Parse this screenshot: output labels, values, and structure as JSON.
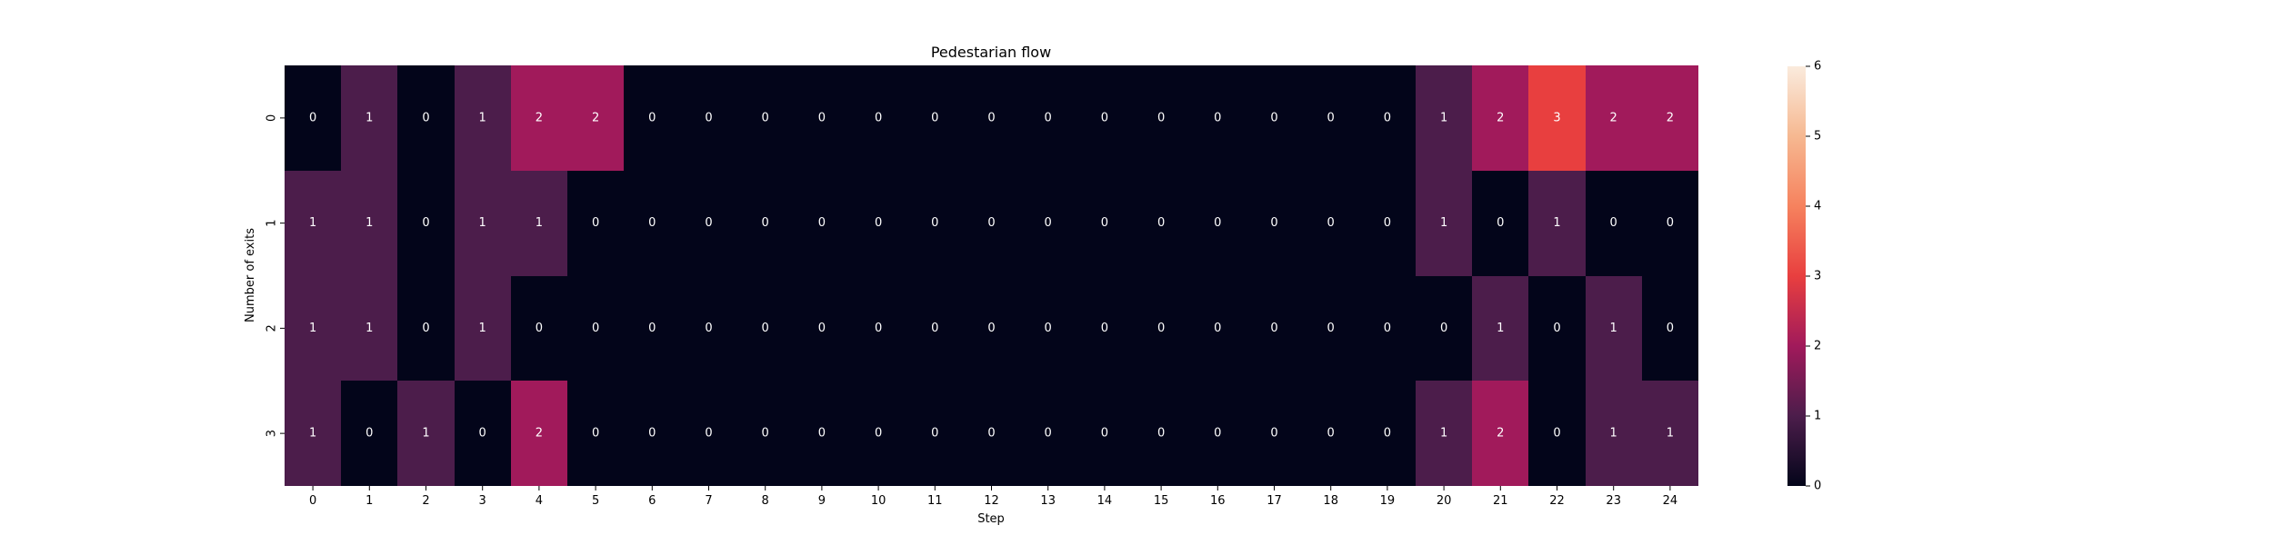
{
  "chart_data": {
    "type": "heatmap",
    "title": "Pedestarian flow",
    "xlabel": "Step",
    "ylabel": "Number of exits",
    "x_ticks": [
      "0",
      "1",
      "2",
      "3",
      "4",
      "5",
      "6",
      "7",
      "8",
      "9",
      "10",
      "11",
      "12",
      "13",
      "14",
      "15",
      "16",
      "17",
      "18",
      "19",
      "20",
      "21",
      "22",
      "23",
      "24"
    ],
    "y_ticks": [
      "0",
      "1",
      "2",
      "3"
    ],
    "values": [
      [
        0,
        1,
        0,
        1,
        2,
        2,
        0,
        0,
        0,
        0,
        0,
        0,
        0,
        0,
        0,
        0,
        0,
        0,
        0,
        0,
        1,
        2,
        3,
        2,
        2
      ],
      [
        1,
        1,
        0,
        1,
        1,
        0,
        0,
        0,
        0,
        0,
        0,
        0,
        0,
        0,
        0,
        0,
        0,
        0,
        0,
        0,
        1,
        0,
        1,
        0,
        0
      ],
      [
        1,
        1,
        0,
        1,
        0,
        0,
        0,
        0,
        0,
        0,
        0,
        0,
        0,
        0,
        0,
        0,
        0,
        0,
        0,
        0,
        0,
        1,
        0,
        1,
        0
      ],
      [
        1,
        0,
        1,
        0,
        2,
        0,
        0,
        0,
        0,
        0,
        0,
        0,
        0,
        0,
        0,
        0,
        0,
        0,
        0,
        0,
        1,
        2,
        0,
        1,
        1
      ]
    ],
    "colorbar": {
      "min": 0,
      "max": 6,
      "ticks": [
        "0",
        "1",
        "2",
        "3",
        "4",
        "5",
        "6"
      ],
      "colormap": "rocket"
    },
    "colors": {
      "0": "#03051a",
      "1": "#4c1d4b",
      "2": "#a11a5b",
      "3": "#e83f3f"
    }
  }
}
